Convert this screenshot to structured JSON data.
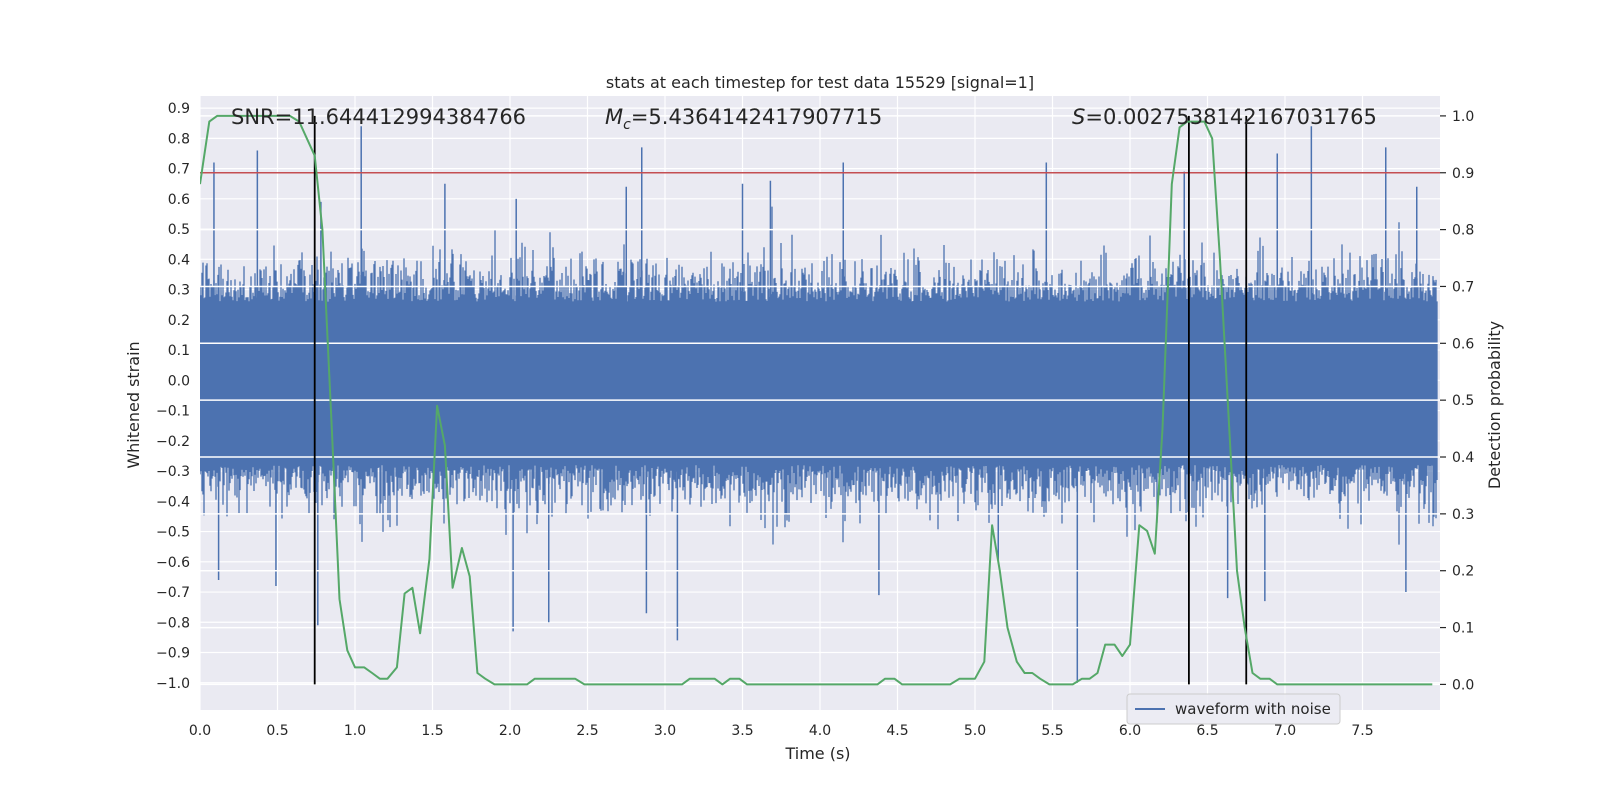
{
  "chart_data": {
    "type": "line",
    "title": "stats at each timestep for test data 15529 [signal=1]",
    "xlabel": "Time (s)",
    "ylabel_left": "Whitened strain",
    "ylabel_right": "Detection probability",
    "xlim": [
      0.0,
      8.0
    ],
    "ylim_left": [
      -1.09,
      0.94
    ],
    "ylim_right": [
      -0.045,
      1.035
    ],
    "x_ticks": [
      "0.0",
      "0.5",
      "1.0",
      "1.5",
      "2.0",
      "2.5",
      "3.0",
      "3.5",
      "4.0",
      "4.5",
      "5.0",
      "5.5",
      "6.0",
      "6.5",
      "7.0",
      "7.5"
    ],
    "y_ticks_left": [
      "0.9",
      "0.8",
      "0.7",
      "0.6",
      "0.5",
      "0.4",
      "0.3",
      "0.2",
      "0.1",
      "0.0",
      "-0.1",
      "-0.2",
      "-0.3",
      "-0.4",
      "-0.5",
      "-0.6",
      "-0.7",
      "-0.8",
      "-0.9",
      "-1.0"
    ],
    "y_ticks_right": [
      "1.0",
      "0.9",
      "0.8",
      "0.7",
      "0.6",
      "0.5",
      "0.4",
      "0.3",
      "0.2",
      "0.1",
      "0.0"
    ],
    "annotations": {
      "snr": "SNR=11.644412994384766",
      "mc_symbol": "M",
      "mc_sub": "c",
      "mc_value": "=5.4364142417907715",
      "s_symbol": "S",
      "s_value": "=0.0027538142167031765"
    },
    "threshold": 0.9,
    "vertical_lines": [
      0.74,
      6.38,
      6.75
    ],
    "legend": {
      "label": "waveform with noise",
      "position": "bottom-right"
    },
    "waveform_envelope": {
      "name": "waveform with noise",
      "peaks_up": [
        [
          0.09,
          0.72
        ],
        [
          0.37,
          0.76
        ],
        [
          0.78,
          0.59
        ],
        [
          1.04,
          0.84
        ],
        [
          1.58,
          0.65
        ],
        [
          2.04,
          0.6
        ],
        [
          2.75,
          0.64
        ],
        [
          2.85,
          0.77
        ],
        [
          3.5,
          0.65
        ],
        [
          3.68,
          0.66
        ],
        [
          4.15,
          0.72
        ],
        [
          5.46,
          0.72
        ],
        [
          6.35,
          0.69
        ],
        [
          6.95,
          0.75
        ],
        [
          7.17,
          0.84
        ],
        [
          7.65,
          0.77
        ],
        [
          7.85,
          0.64
        ]
      ],
      "peaks_down": [
        [
          0.12,
          -0.66
        ],
        [
          0.49,
          -0.68
        ],
        [
          0.76,
          -0.81
        ],
        [
          2.02,
          -0.83
        ],
        [
          2.25,
          -0.8
        ],
        [
          2.88,
          -0.77
        ],
        [
          3.08,
          -0.86
        ],
        [
          4.38,
          -0.71
        ],
        [
          5.15,
          -0.6
        ],
        [
          5.66,
          -1.0
        ],
        [
          6.63,
          -0.72
        ],
        [
          6.87,
          -0.73
        ],
        [
          7.78,
          -0.7
        ]
      ]
    },
    "series": [
      {
        "name": "detection probability",
        "color": "#55a868",
        "x": [
          0.0,
          0.06,
          0.11,
          0.16,
          0.22,
          0.27,
          0.32,
          0.37,
          0.43,
          0.48,
          0.53,
          0.58,
          0.64,
          0.69,
          0.74,
          0.79,
          0.85,
          0.9,
          0.95,
          1.0,
          1.06,
          1.11,
          1.16,
          1.21,
          1.27,
          1.32,
          1.37,
          1.42,
          1.48,
          1.53,
          1.58,
          1.63,
          1.69,
          1.74,
          1.79,
          1.84,
          1.9,
          1.95,
          2.0,
          2.06,
          2.11,
          2.16,
          2.21,
          2.27,
          2.32,
          2.37,
          2.42,
          2.48,
          2.53,
          2.58,
          2.63,
          2.69,
          2.74,
          2.79,
          2.84,
          2.9,
          2.95,
          3.0,
          3.06,
          3.11,
          3.16,
          3.21,
          3.27,
          3.32,
          3.37,
          3.42,
          3.48,
          3.53,
          3.58,
          3.63,
          3.69,
          3.74,
          3.79,
          3.84,
          3.9,
          3.95,
          4.0,
          4.06,
          4.11,
          4.16,
          4.21,
          4.27,
          4.32,
          4.37,
          4.42,
          4.48,
          4.53,
          4.58,
          4.63,
          4.69,
          4.74,
          4.79,
          4.84,
          4.9,
          4.95,
          5.0,
          5.06,
          5.11,
          5.16,
          5.21,
          5.27,
          5.32,
          5.37,
          5.42,
          5.48,
          5.53,
          5.58,
          5.63,
          5.69,
          5.74,
          5.79,
          5.84,
          5.9,
          5.95,
          6.0,
          6.06,
          6.11,
          6.16,
          6.21,
          6.27,
          6.32,
          6.37,
          6.42,
          6.48,
          6.53,
          6.58,
          6.63,
          6.69,
          6.74,
          6.79,
          6.84,
          6.9,
          6.95,
          7.0,
          7.06,
          7.11,
          7.16,
          7.21,
          7.27,
          7.32,
          7.37,
          7.42,
          7.48,
          7.53,
          7.58,
          7.63,
          7.69,
          7.74,
          7.79,
          7.84,
          7.9,
          7.95
        ],
        "values": [
          0.88,
          0.99,
          1.0,
          1.0,
          1.0,
          1.0,
          1.0,
          1.0,
          1.0,
          1.0,
          1.0,
          1.0,
          0.99,
          0.96,
          0.93,
          0.8,
          0.45,
          0.15,
          0.06,
          0.03,
          0.03,
          0.02,
          0.01,
          0.01,
          0.03,
          0.16,
          0.17,
          0.09,
          0.22,
          0.49,
          0.42,
          0.17,
          0.24,
          0.19,
          0.02,
          0.01,
          0.0,
          0.0,
          0.0,
          0.0,
          0.0,
          0.01,
          0.01,
          0.01,
          0.01,
          0.01,
          0.01,
          0.0,
          0.0,
          0.0,
          0.0,
          0.0,
          0.0,
          0.0,
          0.0,
          0.0,
          0.0,
          0.0,
          0.0,
          0.0,
          0.01,
          0.01,
          0.01,
          0.01,
          0.0,
          0.01,
          0.01,
          0.0,
          0.0,
          0.0,
          0.0,
          0.0,
          0.0,
          0.0,
          0.0,
          0.0,
          0.0,
          0.0,
          0.0,
          0.0,
          0.0,
          0.0,
          0.0,
          0.0,
          0.01,
          0.01,
          0.0,
          0.0,
          0.0,
          0.0,
          0.0,
          0.0,
          0.0,
          0.01,
          0.01,
          0.01,
          0.04,
          0.28,
          0.2,
          0.1,
          0.04,
          0.02,
          0.02,
          0.01,
          0.0,
          0.0,
          0.0,
          0.0,
          0.01,
          0.01,
          0.02,
          0.07,
          0.07,
          0.05,
          0.07,
          0.28,
          0.27,
          0.23,
          0.45,
          0.88,
          0.98,
          0.99,
          0.99,
          0.99,
          0.96,
          0.75,
          0.5,
          0.2,
          0.1,
          0.02,
          0.01,
          0.01,
          0.0,
          0.0,
          0.0,
          0.0,
          0.0,
          0.0,
          0.0,
          0.0,
          0.0,
          0.0,
          0.0,
          0.0,
          0.0,
          0.0,
          0.0,
          0.0,
          0.0,
          0.0,
          0.0,
          0.0
        ]
      }
    ],
    "colors": {
      "waveform": "#4c72b0",
      "probability": "#55a868",
      "threshold": "#c44e52",
      "vline": "#000000",
      "axes_bg": "#eaeaf2",
      "grid": "#ffffff"
    }
  }
}
